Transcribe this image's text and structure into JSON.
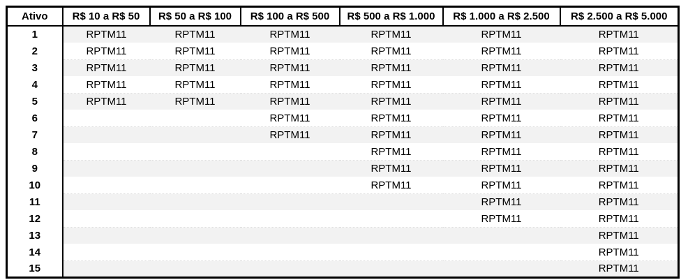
{
  "table": {
    "header": {
      "ativo": "Ativo",
      "columns": [
        "R$ 10 a R$ 50",
        "R$ 50 a R$ 100",
        "R$ 100 a R$ 500",
        "R$ 500 a R$ 1.000",
        "R$ 1.000 a R$ 2.500",
        "R$ 2.500 a R$ 5.000"
      ]
    },
    "ticker": "RPTM11",
    "rows": [
      {
        "ativo": "1",
        "cells": [
          "RPTM11",
          "RPTM11",
          "RPTM11",
          "RPTM11",
          "RPTM11",
          "RPTM11"
        ]
      },
      {
        "ativo": "2",
        "cells": [
          "RPTM11",
          "RPTM11",
          "RPTM11",
          "RPTM11",
          "RPTM11",
          "RPTM11"
        ]
      },
      {
        "ativo": "3",
        "cells": [
          "RPTM11",
          "RPTM11",
          "RPTM11",
          "RPTM11",
          "RPTM11",
          "RPTM11"
        ]
      },
      {
        "ativo": "4",
        "cells": [
          "RPTM11",
          "RPTM11",
          "RPTM11",
          "RPTM11",
          "RPTM11",
          "RPTM11"
        ]
      },
      {
        "ativo": "5",
        "cells": [
          "RPTM11",
          "RPTM11",
          "RPTM11",
          "RPTM11",
          "RPTM11",
          "RPTM11"
        ]
      },
      {
        "ativo": "6",
        "cells": [
          "",
          "",
          "RPTM11",
          "RPTM11",
          "RPTM11",
          "RPTM11"
        ]
      },
      {
        "ativo": "7",
        "cells": [
          "",
          "",
          "RPTM11",
          "RPTM11",
          "RPTM11",
          "RPTM11"
        ]
      },
      {
        "ativo": "8",
        "cells": [
          "",
          "",
          "",
          "RPTM11",
          "RPTM11",
          "RPTM11"
        ]
      },
      {
        "ativo": "9",
        "cells": [
          "",
          "",
          "",
          "RPTM11",
          "RPTM11",
          "RPTM11"
        ]
      },
      {
        "ativo": "10",
        "cells": [
          "",
          "",
          "",
          "RPTM11",
          "RPTM11",
          "RPTM11"
        ]
      },
      {
        "ativo": "11",
        "cells": [
          "",
          "",
          "",
          "",
          "RPTM11",
          "RPTM11"
        ]
      },
      {
        "ativo": "12",
        "cells": [
          "",
          "",
          "",
          "",
          "RPTM11",
          "RPTM11"
        ]
      },
      {
        "ativo": "13",
        "cells": [
          "",
          "",
          "",
          "",
          "",
          "RPTM11"
        ]
      },
      {
        "ativo": "14",
        "cells": [
          "",
          "",
          "",
          "",
          "",
          "RPTM11"
        ]
      },
      {
        "ativo": "15",
        "cells": [
          "",
          "",
          "",
          "",
          "",
          "RPTM11"
        ]
      }
    ]
  },
  "colors": {
    "border": "#000000",
    "stripe": "#f2f2f2",
    "background": "#ffffff",
    "text": "#000000"
  }
}
